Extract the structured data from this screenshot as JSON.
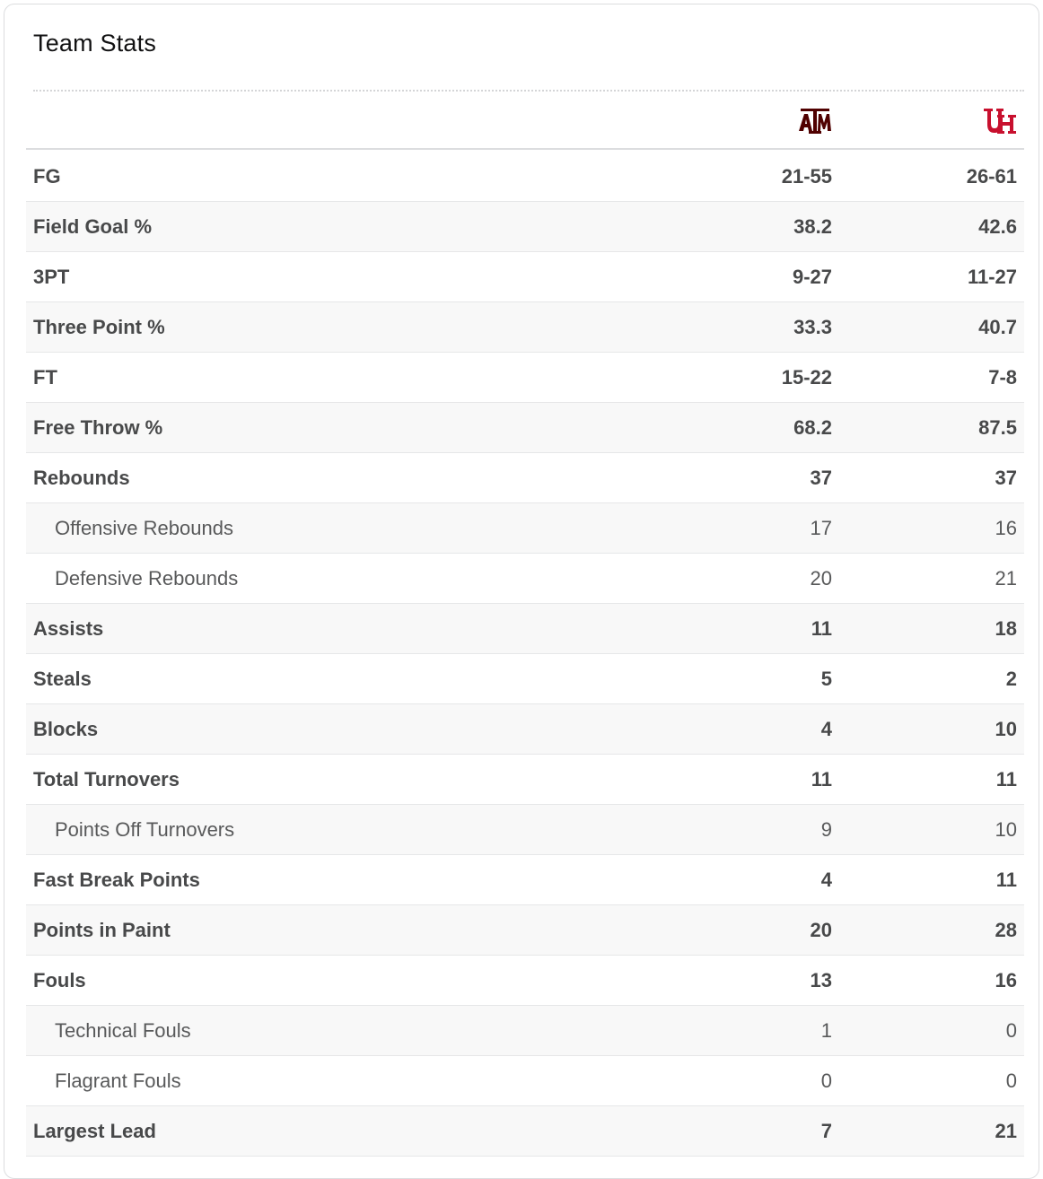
{
  "title": "Team Stats",
  "teams": {
    "away": {
      "name": "Texas A&M",
      "logo_icon": "texas-am-logo-icon",
      "color": "#500000"
    },
    "home": {
      "name": "Houston",
      "logo_icon": "houston-logo-icon",
      "color": "#c8102e"
    }
  },
  "rows": [
    {
      "key": "fg",
      "label": "FG",
      "away": "21-55",
      "home": "26-61",
      "sub": false
    },
    {
      "key": "fg-pct",
      "label": "Field Goal %",
      "away": "38.2",
      "home": "42.6",
      "sub": false
    },
    {
      "key": "3pt",
      "label": "3PT",
      "away": "9-27",
      "home": "11-27",
      "sub": false
    },
    {
      "key": "3pt-pct",
      "label": "Three Point %",
      "away": "33.3",
      "home": "40.7",
      "sub": false
    },
    {
      "key": "ft",
      "label": "FT",
      "away": "15-22",
      "home": "7-8",
      "sub": false
    },
    {
      "key": "ft-pct",
      "label": "Free Throw %",
      "away": "68.2",
      "home": "87.5",
      "sub": false
    },
    {
      "key": "rebounds",
      "label": "Rebounds",
      "away": "37",
      "home": "37",
      "sub": false
    },
    {
      "key": "off-rebounds",
      "label": "Offensive Rebounds",
      "away": "17",
      "home": "16",
      "sub": true
    },
    {
      "key": "def-rebounds",
      "label": "Defensive Rebounds",
      "away": "20",
      "home": "21",
      "sub": true
    },
    {
      "key": "assists",
      "label": "Assists",
      "away": "11",
      "home": "18",
      "sub": false
    },
    {
      "key": "steals",
      "label": "Steals",
      "away": "5",
      "home": "2",
      "sub": false
    },
    {
      "key": "blocks",
      "label": "Blocks",
      "away": "4",
      "home": "10",
      "sub": false
    },
    {
      "key": "turnovers",
      "label": "Total Turnovers",
      "away": "11",
      "home": "11",
      "sub": false
    },
    {
      "key": "pts-off-turnovers",
      "label": "Points Off Turnovers",
      "away": "9",
      "home": "10",
      "sub": true
    },
    {
      "key": "fast-break",
      "label": "Fast Break Points",
      "away": "4",
      "home": "11",
      "sub": false
    },
    {
      "key": "paint",
      "label": "Points in Paint",
      "away": "20",
      "home": "28",
      "sub": false
    },
    {
      "key": "fouls",
      "label": "Fouls",
      "away": "13",
      "home": "16",
      "sub": false
    },
    {
      "key": "tech-fouls",
      "label": "Technical Fouls",
      "away": "1",
      "home": "0",
      "sub": true
    },
    {
      "key": "flagrant-fouls",
      "label": "Flagrant Fouls",
      "away": "0",
      "home": "0",
      "sub": true
    },
    {
      "key": "largest-lead",
      "label": "Largest Lead",
      "away": "7",
      "home": "21",
      "sub": false
    }
  ]
}
